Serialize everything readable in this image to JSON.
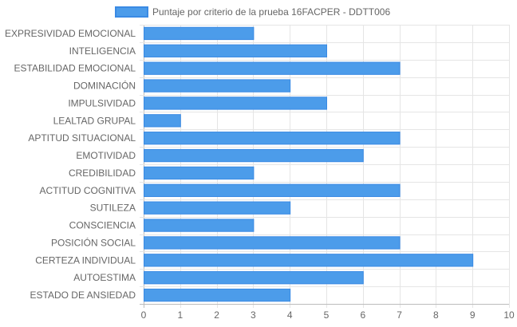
{
  "chart_data": {
    "type": "bar",
    "orientation": "horizontal",
    "categories": [
      "EXPRESIVIDAD EMOCIONAL",
      "INTELIGENCIA",
      "ESTABILIDAD EMOCIONAL",
      "DOMINACIÓN",
      "IMPULSIVIDAD",
      "LEALTAD GRUPAL",
      "APTITUD SITUACIONAL",
      "EMOTIVIDAD",
      "CREDIBILIDAD",
      "ACTITUD COGNITIVA",
      "SUTILEZA",
      "CONSCIENCIA",
      "POSICIÓN SOCIAL",
      "CERTEZA INDIVIDUAL",
      "AUTOESTIMA",
      "ESTADO DE ANSIEDAD"
    ],
    "series": [
      {
        "name": "Puntaje por criterio de la prueba 16FACPER - DDTT006",
        "values": [
          3,
          5,
          7,
          4,
          5,
          1,
          7,
          6,
          3,
          7,
          4,
          3,
          7,
          9,
          6,
          4
        ]
      }
    ],
    "x_ticks": [
      "0",
      "1",
      "2",
      "3",
      "4",
      "5",
      "6",
      "7",
      "8",
      "9",
      "10"
    ],
    "xlim": [
      0,
      10
    ],
    "grid": true,
    "legend_position": "top",
    "colors": {
      "bar_fill": "#4c9cea",
      "bar_stroke": "#3a8ae4",
      "grid": "#e5e5e5",
      "axis": "#bdbdbd",
      "text": "#666666"
    }
  }
}
